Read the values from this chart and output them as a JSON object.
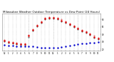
{
  "title": "Milwaukee Weather Outdoor Temperature vs Dew Point (24 Hours)",
  "title_fontsize": 3.0,
  "background_color": "#ffffff",
  "grid_color": "#999999",
  "hours": [
    0,
    1,
    2,
    3,
    4,
    5,
    6,
    7,
    8,
    9,
    10,
    11,
    12,
    13,
    14,
    15,
    16,
    17,
    18,
    19,
    20,
    21,
    22,
    23
  ],
  "temp": [
    32,
    30,
    29,
    28,
    27,
    27,
    38,
    46,
    52,
    57,
    61,
    62,
    62,
    61,
    59,
    57,
    54,
    51,
    48,
    45,
    43,
    40,
    37,
    35
  ],
  "dew": [
    26,
    25,
    25,
    24,
    24,
    24,
    24,
    24,
    23,
    22,
    22,
    22,
    22,
    22,
    23,
    24,
    25,
    26,
    27,
    28,
    28,
    29,
    29,
    30
  ],
  "hi_temp": [
    33,
    31,
    30,
    29,
    28,
    28,
    39,
    47,
    53,
    58,
    62,
    63,
    63,
    62,
    60,
    58,
    55,
    52,
    49,
    46,
    44,
    41,
    38,
    36
  ],
  "lo_temp": [
    31,
    29,
    28,
    27,
    26,
    26,
    37,
    45,
    51,
    56,
    60,
    61,
    61,
    60,
    58,
    56,
    53,
    50,
    47,
    44,
    42,
    39,
    36,
    34
  ],
  "temp_color": "#dd0000",
  "dew_color": "#0000cc",
  "hi_color": "#dd4444",
  "lo_color": "#333333",
  "ylim": [
    18,
    68
  ],
  "yticks": [
    20,
    30,
    40,
    50,
    60
  ],
  "ytick_labels": [
    "20",
    "30",
    "40",
    "50",
    "60"
  ],
  "xtick_labels": [
    "12",
    "1",
    "2",
    "3",
    "4",
    "5",
    "6",
    "7",
    "8",
    "9",
    "10",
    "11",
    "12",
    "1",
    "2",
    "3",
    "4",
    "5",
    "6",
    "7",
    "8",
    "9",
    "10",
    "11"
  ],
  "vline_hours": [
    0,
    1,
    2,
    3,
    4,
    5,
    6,
    7,
    8,
    9,
    10,
    11,
    12,
    13,
    14,
    15,
    16,
    17,
    18,
    19,
    20,
    21,
    22,
    23
  ],
  "vline_major": [
    6,
    12,
    18
  ],
  "marker_size": 1.5
}
